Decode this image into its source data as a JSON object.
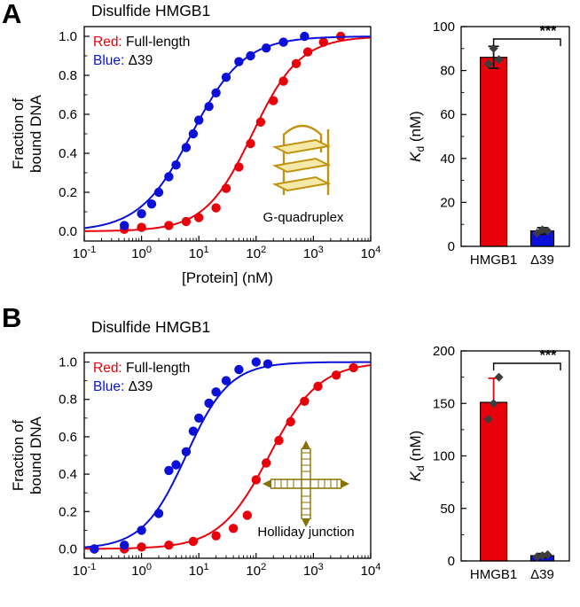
{
  "figure": {
    "colors": {
      "red": "#e8000b",
      "blue": "#0b10d8",
      "gold": "#c09410",
      "gold_light": "#f5e9a8",
      "olive": "#8a7000",
      "point_gray": "#3d3d3d"
    }
  },
  "panels": [
    {
      "letter": "A"
    },
    {
      "letter": "B"
    }
  ],
  "chart_data": [
    {
      "id": "binding-curve-A",
      "type": "scatter",
      "title": "Disulfide HMGB1",
      "xlabel": "[Protein] (nM)",
      "show_xlabel": true,
      "ylabel_lines": [
        "Fraction of",
        "bound DNA"
      ],
      "xscale": "log",
      "xlim": [
        0.1,
        10000
      ],
      "ylim": [
        -0.05,
        1.05
      ],
      "yticks": [
        0,
        0.2,
        0.4,
        0.6,
        0.8,
        1.0
      ],
      "legend": [
        {
          "label": "Red",
          "color": "red",
          "rest": "Full-length"
        },
        {
          "label": "Blue",
          "color": "blue",
          "rest": "Δ39"
        }
      ],
      "inset": {
        "icon": "g-quadruplex-icon",
        "caption": "G-quadruplex"
      },
      "series": [
        {
          "name": "Full-length",
          "color": "red",
          "fit_kd": 86,
          "fit_hill": 1.05,
          "points": [
            [
              0.5,
              0.01
            ],
            [
              1,
              0.02
            ],
            [
              3,
              0.03
            ],
            [
              6,
              0.05
            ],
            [
              10,
              0.07
            ],
            [
              20,
              0.12
            ],
            [
              30,
              0.22
            ],
            [
              50,
              0.33
            ],
            [
              80,
              0.45
            ],
            [
              120,
              0.56
            ],
            [
              200,
              0.67
            ],
            [
              300,
              0.77
            ],
            [
              500,
              0.86
            ],
            [
              800,
              0.92
            ],
            [
              1500,
              0.97
            ],
            [
              3000,
              1.0
            ]
          ]
        },
        {
          "name": "Δ39",
          "color": "blue",
          "fit_kd": 7.5,
          "fit_hill": 0.95,
          "points": [
            [
              0.5,
              0.03
            ],
            [
              1,
              0.09
            ],
            [
              1.5,
              0.14
            ],
            [
              2,
              0.2
            ],
            [
              3,
              0.28
            ],
            [
              4,
              0.34
            ],
            [
              6,
              0.43
            ],
            [
              8,
              0.5
            ],
            [
              10,
              0.57
            ],
            [
              15,
              0.64
            ],
            [
              20,
              0.71
            ],
            [
              30,
              0.79
            ],
            [
              50,
              0.87
            ],
            [
              80,
              0.9
            ],
            [
              150,
              0.94
            ],
            [
              300,
              0.97
            ],
            [
              700,
              1.0
            ]
          ]
        }
      ]
    },
    {
      "id": "kd-bar-A",
      "type": "bar",
      "categories": [
        "HMGB1",
        "Δ39"
      ],
      "values": [
        86,
        7
      ],
      "errors": [
        5,
        1.5
      ],
      "replicate_points": [
        [
          83,
          90,
          85
        ],
        [
          6,
          7.5,
          7
        ]
      ],
      "bar_colors": [
        "red",
        "blue"
      ],
      "error_colors": [
        "#111111",
        "#111111"
      ],
      "ylabel_parts": {
        "italic": "K",
        "sub": "d",
        "rest": " (nM)"
      },
      "ylim": [
        0,
        100
      ],
      "yticks": [
        0,
        20,
        40,
        60,
        80,
        100
      ],
      "significance": "***"
    },
    {
      "id": "binding-curve-B",
      "type": "scatter",
      "title": "Disulfide HMGB1",
      "xlabel": "",
      "show_xlabel": false,
      "ylabel_lines": [
        "Fraction of",
        "bound DNA"
      ],
      "xscale": "log",
      "xlim": [
        0.1,
        10000
      ],
      "ylim": [
        -0.05,
        1.05
      ],
      "yticks": [
        0,
        0.2,
        0.4,
        0.6,
        0.8,
        1.0
      ],
      "legend": [
        {
          "label": "Red",
          "color": "red",
          "rest": "Full-length"
        },
        {
          "label": "Blue",
          "color": "blue",
          "rest": "Δ39"
        }
      ],
      "inset": {
        "icon": "holliday-junction-icon",
        "caption": "Holliday junction"
      },
      "series": [
        {
          "name": "Full-length",
          "color": "red",
          "fit_kd": 170,
          "fit_hill": 1.0,
          "points": [
            [
              0.15,
              0.0
            ],
            [
              0.5,
              0.0
            ],
            [
              1,
              0.01
            ],
            [
              3,
              0.02
            ],
            [
              8,
              0.04
            ],
            [
              20,
              0.07
            ],
            [
              40,
              0.11
            ],
            [
              70,
              0.18
            ],
            [
              100,
              0.37
            ],
            [
              150,
              0.46
            ],
            [
              250,
              0.58
            ],
            [
              400,
              0.68
            ],
            [
              700,
              0.79
            ],
            [
              1200,
              0.87
            ],
            [
              2500,
              0.93
            ],
            [
              5000,
              0.97
            ]
          ]
        },
        {
          "name": "Δ39",
          "color": "blue",
          "fit_kd": 6,
          "fit_hill": 1.15,
          "points": [
            [
              0.15,
              0.0
            ],
            [
              0.5,
              0.02
            ],
            [
              1,
              0.1
            ],
            [
              2,
              0.19
            ],
            [
              3,
              0.42
            ],
            [
              4,
              0.45
            ],
            [
              6,
              0.52
            ],
            [
              8,
              0.63
            ],
            [
              10,
              0.7
            ],
            [
              15,
              0.78
            ],
            [
              20,
              0.84
            ],
            [
              30,
              0.9
            ],
            [
              50,
              0.96
            ],
            [
              100,
              1.0
            ],
            [
              160,
              0.99
            ]
          ]
        }
      ]
    },
    {
      "id": "kd-bar-B",
      "type": "bar",
      "categories": [
        "HMGB1",
        "Δ39"
      ],
      "values": [
        151,
        5
      ],
      "errors": [
        23,
        2
      ],
      "replicate_points": [
        [
          135,
          150,
          175
        ],
        [
          4,
          5,
          6
        ]
      ],
      "bar_colors": [
        "red",
        "blue"
      ],
      "error_colors": [
        "red",
        "#111111"
      ],
      "ylabel_parts": {
        "italic": "K",
        "sub": "d",
        "rest": " (nM)"
      },
      "ylim": [
        0,
        200
      ],
      "yticks": [
        0,
        50,
        100,
        150,
        200
      ],
      "significance": "***"
    }
  ]
}
